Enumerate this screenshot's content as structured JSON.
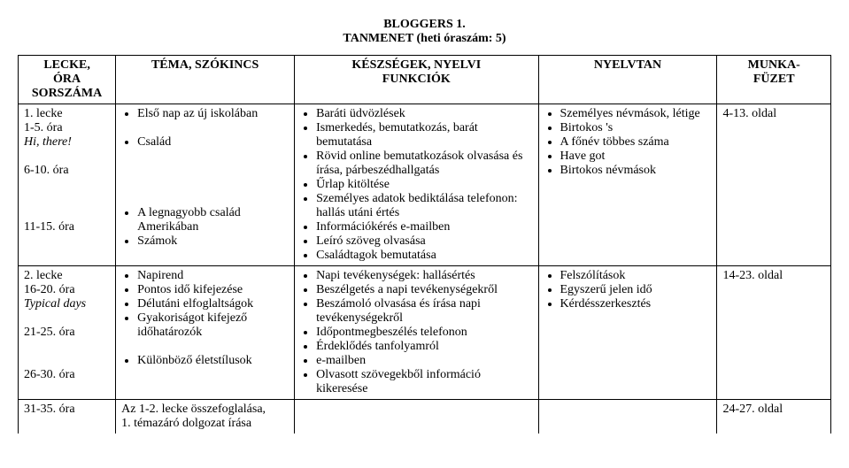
{
  "title": {
    "line1": "BLOGGERS 1.",
    "line2": "TANMENET (heti óraszám: 5)"
  },
  "headers": {
    "col0_line1": "LECKE,",
    "col0_line2": "ÓRA",
    "col0_line3": "SORSZÁMA",
    "col1": "TÉMA, SZÓKINCS",
    "col2_line1": "KÉSZSÉGEK, NYELVI",
    "col2_line2": "FUNKCIÓK",
    "col3": "NYELVTAN",
    "col4_line1": "MUNKA-",
    "col4_line2": "FÜZET"
  },
  "row1": {
    "col0": {
      "a": "1. lecke",
      "b": "1-5. óra",
      "c": "Hi, there!",
      "d": "6-10. óra",
      "e": "11-15. óra"
    },
    "col1": {
      "i1": "Első nap az új iskolában",
      "i2": "Család",
      "i3": "A legnagyobb család Amerikában",
      "i4": "Számok"
    },
    "col2": {
      "i1": "Baráti üdvözlések",
      "i2": "Ismerkedés, bemutatkozás, barát bemutatása",
      "i3": "Rövid online bemutatkozások olvasása és írása, párbeszédhallgatás",
      "i4": "Űrlap kitöltése",
      "i5": "Személyes adatok bediktálása telefonon: hallás utáni értés",
      "i6": "Információkérés e-mailben",
      "i7": "Leíró szöveg olvasása",
      "i8": "Családtagok bemutatása"
    },
    "col3": {
      "i1": "Személyes névmások, létige",
      "i2": "Birtokos 's",
      "i3": "A főnév többes száma",
      "i4": "Have got",
      "i5": "Birtokos névmások"
    },
    "col4": "4-13. oldal"
  },
  "row2": {
    "col0": {
      "a": "2. lecke",
      "b": "16-20. óra",
      "c": "Typical days",
      "d": "21-25. óra",
      "e": "26-30. óra"
    },
    "col1": {
      "i1": "Napirend",
      "i2": "Pontos idő kifejezése",
      "i3": "Délutáni elfoglaltságok",
      "i4": "Gyakoriságot kifejező időhatározók",
      "i5": "Különböző életstílusok"
    },
    "col2": {
      "i1": "Napi tevékenységek: hallásértés",
      "i2": "Beszélgetés a napi tevékenységekről",
      "i3": "Beszámoló olvasása és írása napi tevékenységekről",
      "i4": "Időpontmegbeszélés telefonon",
      "i5": "Érdeklődés tanfolyamról",
      "i6": "e-mailben",
      "i7": "Olvasott szövegekből információ kikeresése"
    },
    "col3": {
      "i1": "Felszólítások",
      "i2": "Egyszerű jelen idő",
      "i3": "Kérdésszerkesztés"
    },
    "col4": "14-23. oldal"
  },
  "row3": {
    "col0": "31-35. óra",
    "col1": {
      "l1": "Az 1-2. lecke összefoglalása,",
      "l2": "1. témazáró dolgozat írása"
    },
    "col4": "24-27. oldal"
  }
}
